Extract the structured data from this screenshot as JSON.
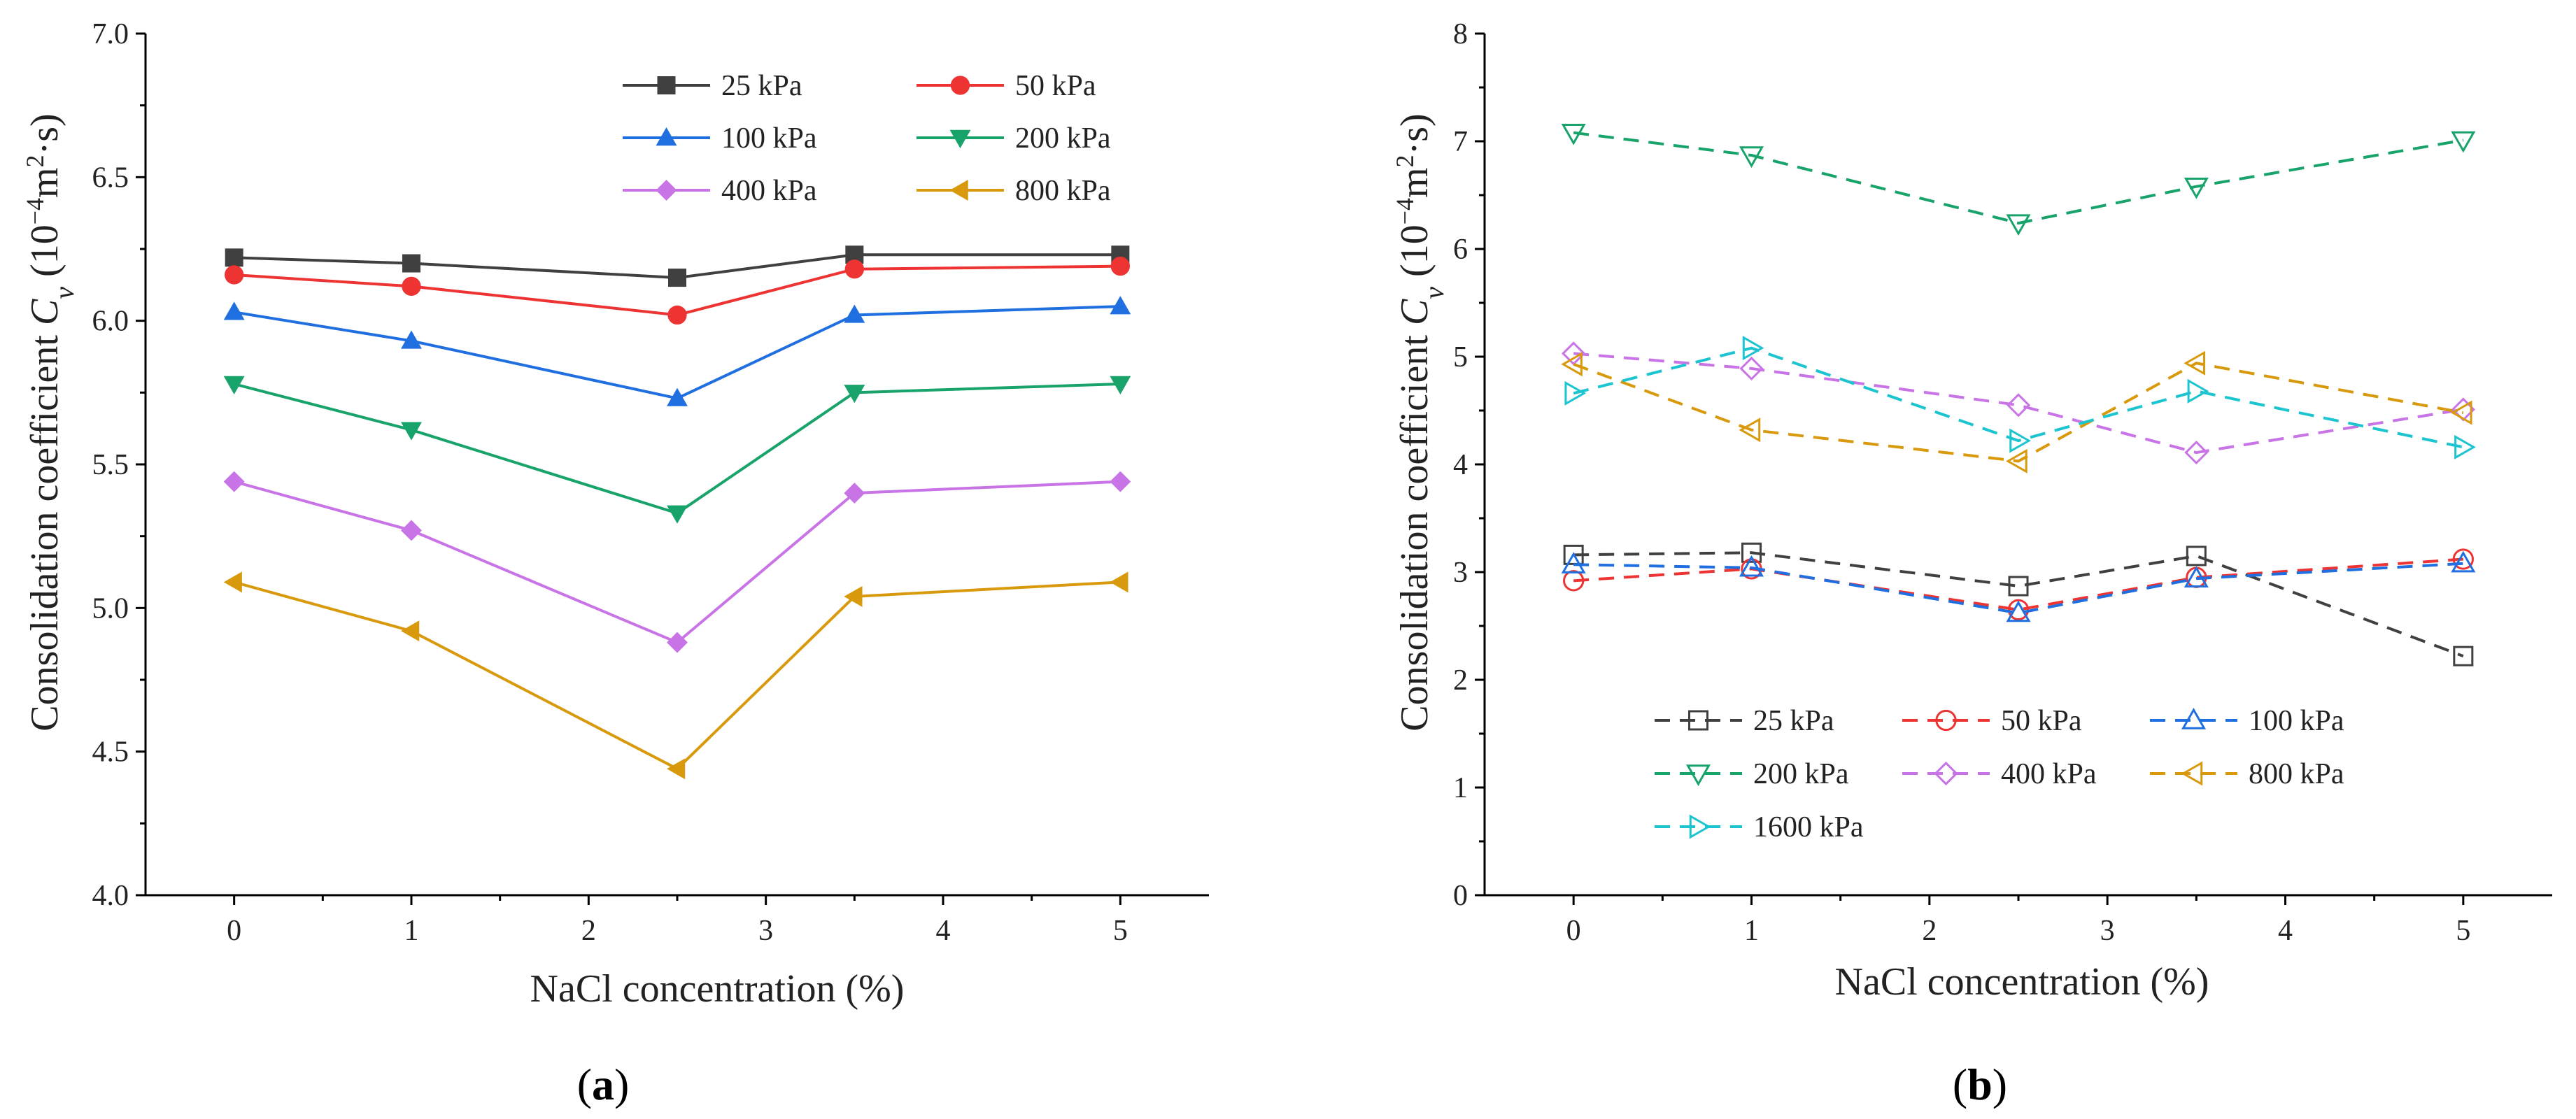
{
  "figure": {
    "caption_a_open": "(",
    "caption_a_letter": "a",
    "caption_a_close": ")",
    "caption_b_open": "(",
    "caption_b_letter": "b",
    "caption_b_close": ")"
  },
  "chart_data": [
    {
      "id": "a",
      "type": "line",
      "line_style": "solid",
      "marker_fill": "filled",
      "xlabel": "NaCl concentration (%)",
      "ylabel_main": "Consolidation coefficient ",
      "ylabel_var": "C",
      "ylabel_sub": "v",
      "ylabel_unit_open": " (10",
      "ylabel_exp": "−4",
      "ylabel_unit_mid": "m",
      "ylabel_exp2": "2",
      "ylabel_unit_close": "·s)",
      "xlim": [
        -0.5,
        5.5
      ],
      "ylim": [
        4.0,
        7.0
      ],
      "x_ticks": [
        0,
        1,
        2,
        3,
        4,
        5
      ],
      "y_ticks": [
        4.0,
        4.5,
        5.0,
        5.5,
        6.0,
        6.5,
        7.0
      ],
      "y_tick_labels": [
        "4.0",
        "4.5",
        "5.0",
        "5.5",
        "6.0",
        "6.5",
        "7.0"
      ],
      "x": [
        0,
        1,
        2.5,
        3.5,
        5
      ],
      "legend_position": "top-right",
      "series": [
        {
          "name": "25 kPa",
          "color": "#404040",
          "marker": "square",
          "values": [
            6.22,
            6.2,
            6.15,
            6.23,
            6.23
          ]
        },
        {
          "name": "50 kPa",
          "color": "#ee3333",
          "marker": "circle",
          "values": [
            6.16,
            6.12,
            6.02,
            6.18,
            6.19
          ]
        },
        {
          "name": "100 kPa",
          "color": "#1f6fe0",
          "marker": "triangle-up",
          "values": [
            6.03,
            5.93,
            5.73,
            6.02,
            6.05
          ]
        },
        {
          "name": "200 kPa",
          "color": "#17a36a",
          "marker": "triangle-down",
          "values": [
            5.78,
            5.62,
            5.33,
            5.75,
            5.78
          ]
        },
        {
          "name": "400 kPa",
          "color": "#c874e6",
          "marker": "diamond",
          "values": [
            5.44,
            5.27,
            4.88,
            5.4,
            5.44
          ]
        },
        {
          "name": "800 kPa",
          "color": "#d89a0c",
          "marker": "triangle-left",
          "values": [
            5.09,
            4.92,
            4.44,
            5.04,
            5.09
          ]
        }
      ]
    },
    {
      "id": "b",
      "type": "line",
      "line_style": "dashed",
      "marker_fill": "hollow",
      "xlabel": "NaCl concentration (%)",
      "ylabel_main": "Consolidation coefficient ",
      "ylabel_var": "C",
      "ylabel_sub": "v",
      "ylabel_unit_open": " (10",
      "ylabel_exp": "−4",
      "ylabel_unit_mid": "m",
      "ylabel_exp2": "2",
      "ylabel_unit_close": "·s)",
      "xlim": [
        -0.5,
        5.5
      ],
      "ylim": [
        0,
        8
      ],
      "x_ticks": [
        0,
        1,
        2,
        3,
        4,
        5
      ],
      "y_ticks": [
        0,
        1,
        2,
        3,
        4,
        5,
        6,
        7,
        8
      ],
      "y_tick_labels": [
        "0",
        "1",
        "2",
        "3",
        "4",
        "5",
        "6",
        "7",
        "8"
      ],
      "x": [
        0,
        1,
        2.5,
        3.5,
        5
      ],
      "legend_position": "bottom-left",
      "series": [
        {
          "name": "25 kPa",
          "color": "#404040",
          "marker": "square",
          "values": [
            3.16,
            3.18,
            2.87,
            3.15,
            2.22
          ]
        },
        {
          "name": "50 kPa",
          "color": "#ee3333",
          "marker": "circle",
          "values": [
            2.92,
            3.03,
            2.65,
            2.95,
            3.12
          ]
        },
        {
          "name": "100 kPa",
          "color": "#1f6fe0",
          "marker": "triangle-up",
          "values": [
            3.07,
            3.04,
            2.62,
            2.94,
            3.08
          ]
        },
        {
          "name": "200 kPa",
          "color": "#17a36a",
          "marker": "triangle-down",
          "values": [
            7.08,
            6.87,
            6.24,
            6.58,
            7.01
          ]
        },
        {
          "name": "400 kPa",
          "color": "#c874e6",
          "marker": "diamond",
          "values": [
            5.03,
            4.89,
            4.55,
            4.11,
            4.51
          ]
        },
        {
          "name": "800 kPa",
          "color": "#d89a0c",
          "marker": "triangle-left",
          "values": [
            4.93,
            4.32,
            4.03,
            4.94,
            4.48
          ]
        },
        {
          "name": "1600 kPa",
          "color": "#1cc4cf",
          "marker": "triangle-right",
          "values": [
            4.66,
            5.08,
            4.22,
            4.68,
            4.16
          ]
        }
      ]
    }
  ]
}
